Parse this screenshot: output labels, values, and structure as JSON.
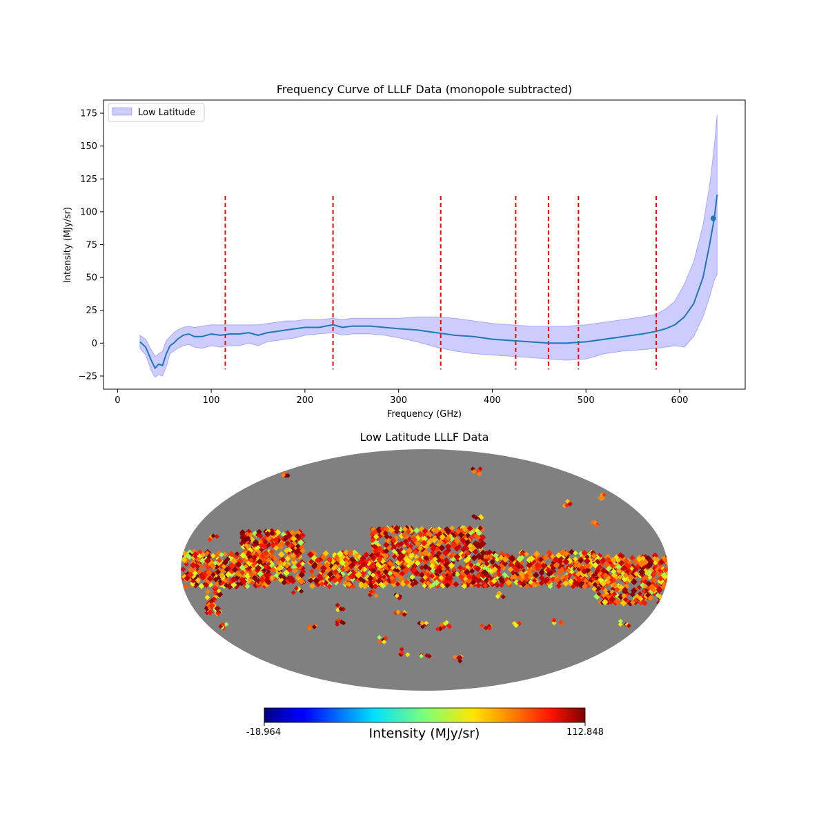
{
  "chart_data": [
    {
      "type": "line",
      "title": "Frequency Curve of LLLF Data (monopole subtracted)",
      "xlabel": "Frequency (GHz)",
      "ylabel": "Intensity (MJy/sr)",
      "xlim": [
        -15,
        670
      ],
      "ylim": [
        -35,
        185
      ],
      "xticks": [
        0,
        100,
        200,
        300,
        400,
        500,
        600
      ],
      "yticks": [
        -25,
        0,
        25,
        50,
        75,
        100,
        125,
        150,
        175
      ],
      "legend": {
        "label": "Low Latitude",
        "placement": "top-left"
      },
      "colors": {
        "line": "#1f77b4",
        "band": "#0000ff",
        "vlines": "#ff0000"
      },
      "band_label": "Low Latitude",
      "x": [
        24,
        30,
        36,
        40,
        44,
        48,
        52,
        56,
        60,
        64,
        70,
        76,
        82,
        90,
        100,
        110,
        120,
        130,
        140,
        150,
        160,
        170,
        180,
        190,
        200,
        215,
        230,
        240,
        250,
        260,
        270,
        285,
        300,
        320,
        340,
        360,
        380,
        400,
        420,
        440,
        460,
        480,
        500,
        520,
        540,
        560,
        575,
        585,
        595,
        605,
        615,
        625,
        632,
        637,
        640
      ],
      "y": [
        1,
        -3,
        -13,
        -19,
        -16,
        -17,
        -8,
        -2,
        0,
        3,
        6,
        7,
        5,
        5,
        7,
        6,
        7,
        7,
        8,
        6,
        8,
        9,
        10,
        11,
        12,
        12,
        14,
        12,
        13,
        13,
        13,
        12,
        11,
        10,
        8,
        6,
        5,
        3,
        2,
        1,
        0,
        0,
        1,
        3,
        5,
        7,
        9,
        11,
        14,
        20,
        30,
        50,
        75,
        95,
        113
      ],
      "upper": [
        6,
        3,
        -5,
        -10,
        -8,
        -6,
        2,
        5,
        8,
        10,
        12,
        13,
        12,
        13,
        14,
        14,
        14,
        14,
        14,
        14,
        15,
        16,
        17,
        17,
        18,
        18,
        19,
        18,
        19,
        19,
        19,
        19,
        19,
        20,
        20,
        19,
        17,
        15,
        14,
        13,
        13,
        13,
        14,
        16,
        18,
        20,
        22,
        26,
        32,
        45,
        62,
        90,
        120,
        150,
        174
      ],
      "lower": [
        -4,
        -9,
        -21,
        -26,
        -24,
        -25,
        -18,
        -8,
        -6,
        -4,
        -2,
        -1,
        -3,
        -4,
        -2,
        -3,
        -2,
        -2,
        0,
        -2,
        1,
        2,
        3,
        4,
        6,
        7,
        8,
        6,
        7,
        7,
        7,
        6,
        4,
        1,
        -3,
        -6,
        -8,
        -9,
        -10,
        -11,
        -12,
        -13,
        -12,
        -8,
        -6,
        -5,
        -4,
        -3,
        -2,
        -3,
        5,
        20,
        35,
        48,
        52
      ],
      "vlines": {
        "positions": [
          115,
          230,
          345,
          425,
          460,
          492,
          575
        ],
        "ymin": -20,
        "ymax": 112
      },
      "marker": {
        "x": 636,
        "y": 95
      }
    },
    {
      "type": "heatmap",
      "title": "Low Latitude LLLF Data",
      "projection": "mollweide",
      "colorbar": {
        "min_label": "-18.964",
        "max_label": "112.848",
        "label": "Intensity (MJy/sr)",
        "min": -18.964,
        "max": 112.848
      },
      "background_color": "#808080"
    }
  ]
}
